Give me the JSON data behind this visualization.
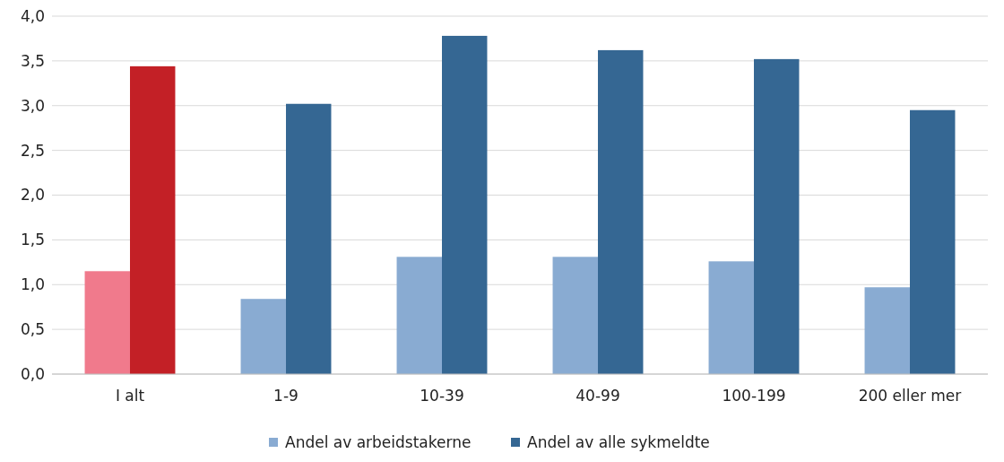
{
  "chart_data": {
    "type": "bar",
    "categories": [
      "I alt",
      "1-9",
      "10-39",
      "40-99",
      "100-199",
      "200 eller mer"
    ],
    "series": [
      {
        "name": "Andel av arbeidstakerne",
        "color": "#89abd2",
        "colors": [
          "#f07a8c",
          "#89abd2",
          "#89abd2",
          "#89abd2",
          "#89abd2",
          "#89abd2"
        ],
        "values": [
          1.15,
          0.84,
          1.31,
          1.31,
          1.26,
          0.97
        ]
      },
      {
        "name": "Andel av alle sykmeldte",
        "color": "#356793",
        "colors": [
          "#c32026",
          "#356793",
          "#356793",
          "#356793",
          "#356793",
          "#356793"
        ],
        "values": [
          3.44,
          3.02,
          3.78,
          3.62,
          3.52,
          2.95
        ]
      }
    ],
    "ylim": [
      0,
      4
    ],
    "yticks": [
      {
        "value": 0,
        "label": "0,0"
      },
      {
        "value": 0.5,
        "label": "0,5"
      },
      {
        "value": 1,
        "label": "1,0"
      },
      {
        "value": 1.5,
        "label": "1,5"
      },
      {
        "value": 2,
        "label": "2,0"
      },
      {
        "value": 2.5,
        "label": "2,5"
      },
      {
        "value": 3,
        "label": "3,0"
      },
      {
        "value": 3.5,
        "label": "3,5"
      },
      {
        "value": 4,
        "label": "4,0"
      }
    ],
    "grid": "y",
    "legend": "bottom"
  }
}
